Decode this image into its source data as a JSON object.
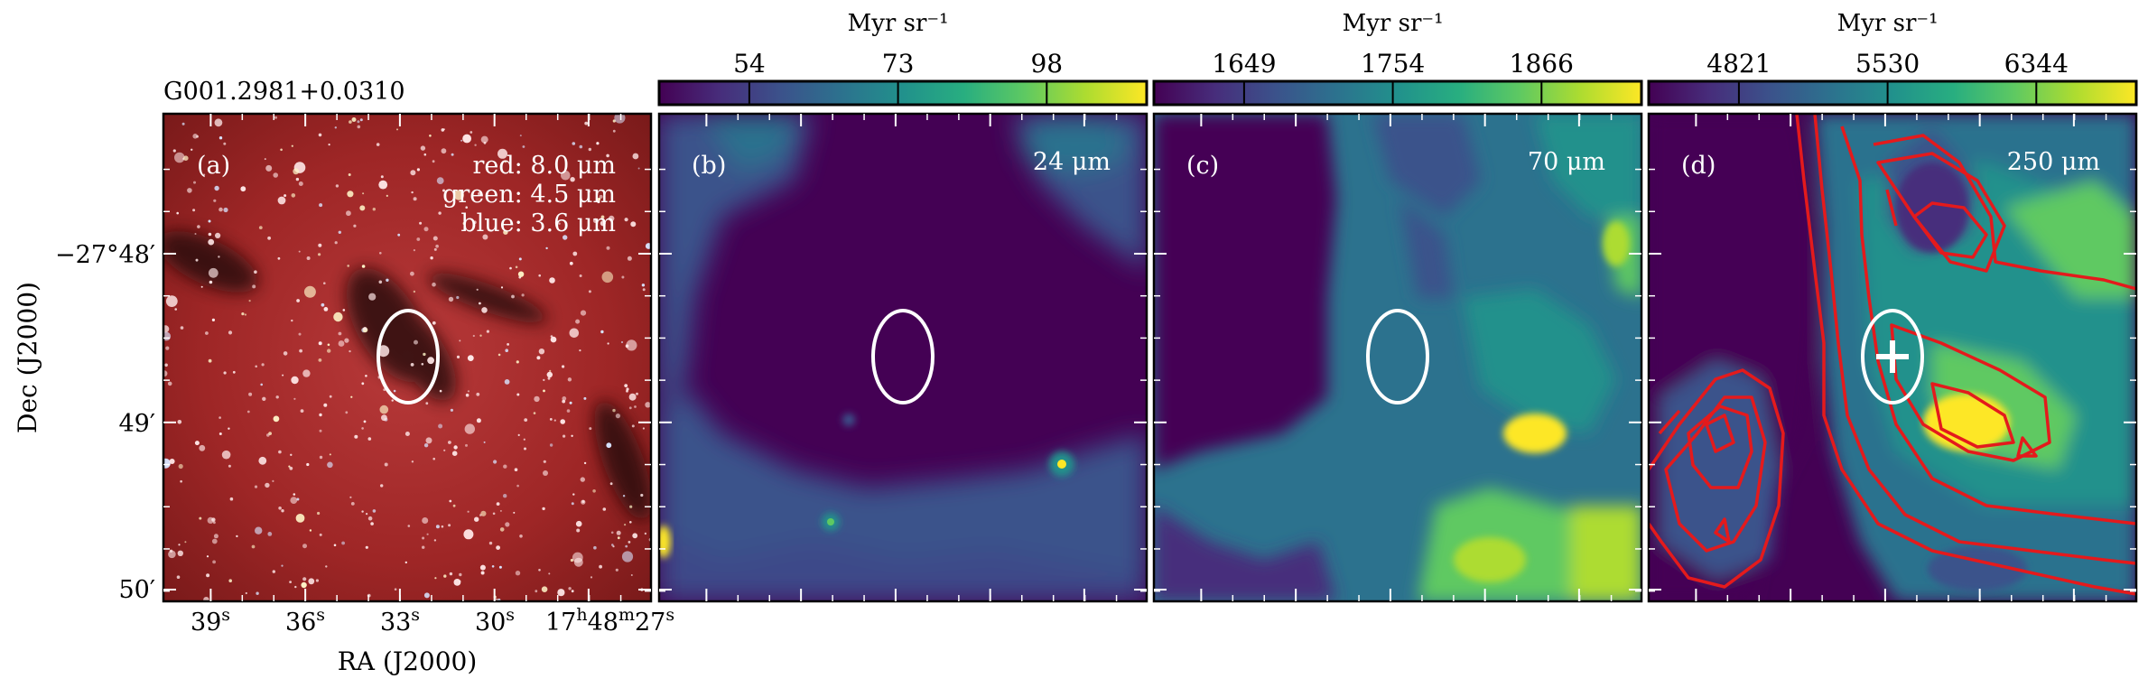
{
  "source_name": "G001.2981+0.0310",
  "axes": {
    "x_title": "RA (J2000)",
    "y_title": "Dec (J2000)",
    "ra_ticks": [
      {
        "h": "",
        "m": "",
        "s": "39"
      },
      {
        "h": "",
        "m": "",
        "s": "36"
      },
      {
        "h": "",
        "m": "",
        "s": "33"
      },
      {
        "h": "",
        "m": "",
        "s": "30"
      },
      {
        "h": "17",
        "m": "48",
        "s": "27"
      }
    ],
    "dec_ticks": [
      {
        "d": "−27°",
        "m": "48′"
      },
      {
        "d": "",
        "m": "49′"
      },
      {
        "d": "",
        "m": "50′"
      }
    ]
  },
  "panels": [
    {
      "id": "a",
      "letter": "(a)",
      "kind": "rgb",
      "labels": [
        "red: 8.0 μm",
        "green: 4.5 μm",
        "blue: 3.6 μm"
      ]
    },
    {
      "id": "b",
      "letter": "(b)",
      "kind": "map",
      "band": "24 μm",
      "colorbar": {
        "title": "Myr sr⁻¹",
        "ticks": [
          "54",
          "73",
          "98"
        ]
      }
    },
    {
      "id": "c",
      "letter": "(c)",
      "kind": "map",
      "band": "70 μm",
      "colorbar": {
        "title": "Myr sr⁻¹",
        "ticks": [
          "1649",
          "1754",
          "1866"
        ]
      }
    },
    {
      "id": "d",
      "letter": "(d)",
      "kind": "map",
      "band": "250 μm",
      "colorbar": {
        "title": "Myr sr⁻¹",
        "ticks": [
          "4821",
          "5530",
          "6344"
        ]
      },
      "contours": true,
      "marker": "plus-icon"
    }
  ],
  "colors": {
    "viridis": [
      "#440154",
      "#472d7b",
      "#3b528b",
      "#2c728e",
      "#21918c",
      "#28ae80",
      "#5ec962",
      "#addc30",
      "#fde725"
    ],
    "contour": "#e41a1c",
    "ellipse": "#ffffff",
    "rgb_background": "#a52a2a"
  }
}
